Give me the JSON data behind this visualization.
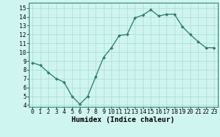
{
  "x": [
    0,
    1,
    2,
    3,
    4,
    5,
    6,
    7,
    8,
    9,
    10,
    11,
    12,
    13,
    14,
    15,
    16,
    17,
    18,
    19,
    20,
    21,
    22,
    23
  ],
  "y": [
    8.8,
    8.5,
    7.7,
    7.0,
    6.6,
    5.0,
    4.1,
    5.0,
    7.2,
    9.4,
    10.5,
    11.9,
    12.0,
    13.9,
    14.2,
    14.8,
    14.1,
    14.3,
    14.3,
    12.9,
    12.0,
    11.2,
    10.5,
    10.5
  ],
  "line_color": "#2e7d6e",
  "marker": "D",
  "marker_size": 2.0,
  "bg_color": "#cff5f0",
  "grid_color": "#b0ddd8",
  "xlabel": "Humidex (Indice chaleur)",
  "xlim": [
    -0.5,
    23.5
  ],
  "ylim": [
    3.8,
    15.6
  ],
  "yticks": [
    4,
    5,
    6,
    7,
    8,
    9,
    10,
    11,
    12,
    13,
    14,
    15
  ],
  "xticks": [
    0,
    1,
    2,
    3,
    4,
    5,
    6,
    7,
    8,
    9,
    10,
    11,
    12,
    13,
    14,
    15,
    16,
    17,
    18,
    19,
    20,
    21,
    22,
    23
  ],
  "tick_fontsize": 6.0,
  "xlabel_fontsize": 7.5,
  "line_width": 1.0
}
